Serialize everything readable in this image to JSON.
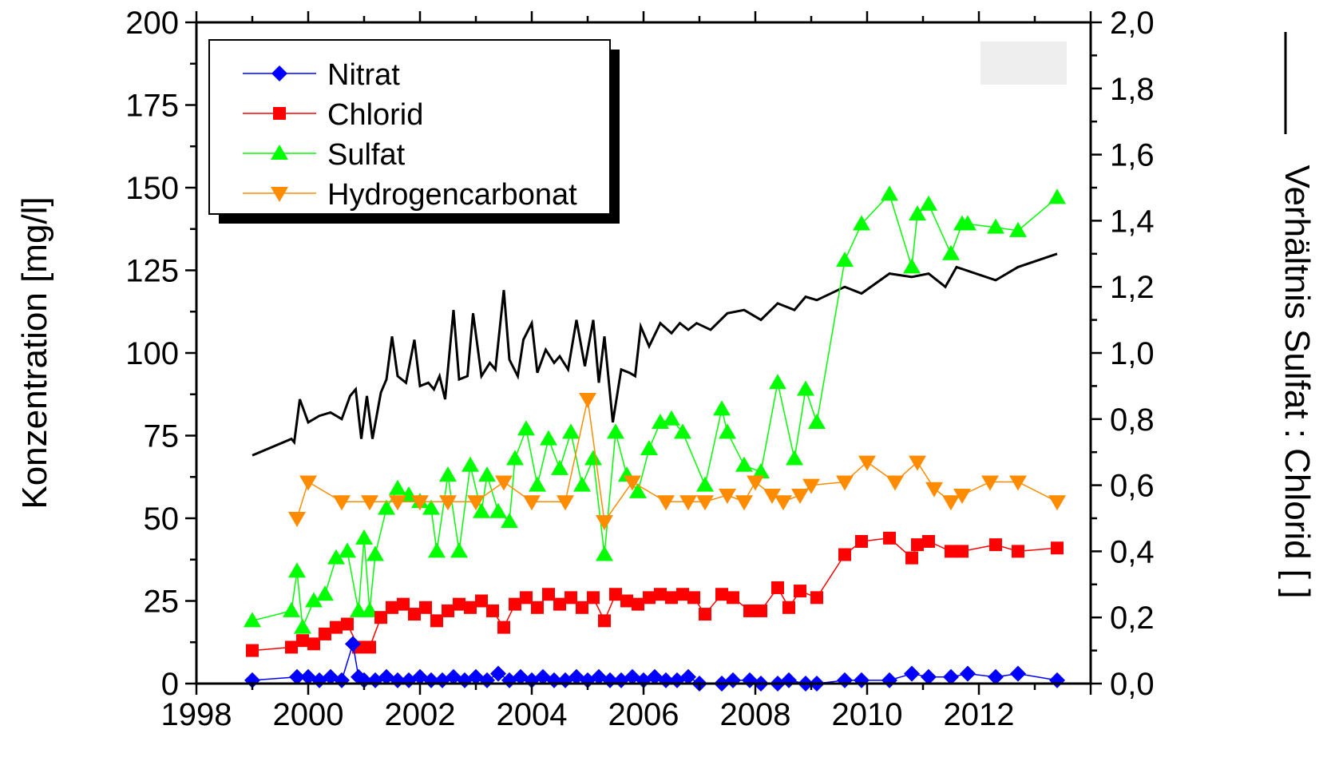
{
  "chart_data": {
    "type": "line",
    "xlabel": "",
    "ylabel": "Konzentration [mg/l]",
    "y2label": "Verhältnis Sulfat : Chlorid [ ]",
    "xlim": [
      1998,
      2014
    ],
    "ylim": [
      0,
      200
    ],
    "y2lim": [
      0,
      2.0
    ],
    "x_ticks": [
      1998,
      2000,
      2002,
      2004,
      2006,
      2008,
      2010,
      2012
    ],
    "y_ticks": [
      0,
      25,
      50,
      75,
      100,
      125,
      150,
      175,
      200
    ],
    "y2_ticks": [
      "0,0",
      "0,2",
      "0,4",
      "0,6",
      "0,8",
      "1,0",
      "1,2",
      "1,4",
      "1,6",
      "1,8",
      "2,0"
    ],
    "legend_position": "top-left",
    "grid": false,
    "series": [
      {
        "name": "Nitrat",
        "marker": "diamond",
        "color": "#0000ff",
        "axis": "left",
        "x": [
          1999.0,
          1999.8,
          2000.0,
          2000.2,
          2000.4,
          2000.6,
          2000.8,
          2000.9,
          2001.0,
          2001.2,
          2001.4,
          2001.6,
          2001.8,
          2002.0,
          2002.2,
          2002.4,
          2002.6,
          2002.8,
          2003.0,
          2003.2,
          2003.4,
          2003.6,
          2003.8,
          2004.0,
          2004.2,
          2004.4,
          2004.6,
          2004.8,
          2005.0,
          2005.2,
          2005.4,
          2005.6,
          2005.8,
          2006.0,
          2006.2,
          2006.4,
          2006.6,
          2006.8,
          2007.0,
          2007.4,
          2007.6,
          2007.9,
          2008.1,
          2008.4,
          2008.6,
          2008.9,
          2009.1,
          2009.6,
          2009.9,
          2010.4,
          2010.8,
          2011.1,
          2011.5,
          2011.8,
          2012.3,
          2012.7,
          2013.4
        ],
        "values": [
          1,
          2,
          2,
          1,
          2,
          1,
          12,
          2,
          1,
          1,
          2,
          1,
          1,
          2,
          1,
          1,
          2,
          1,
          2,
          1,
          3,
          1,
          2,
          1,
          2,
          1,
          1,
          2,
          1,
          2,
          1,
          1,
          2,
          1,
          2,
          1,
          1,
          2,
          0,
          0,
          1,
          1,
          0,
          0,
          1,
          0,
          0,
          1,
          1,
          1,
          3,
          2,
          2,
          3,
          2,
          3,
          1
        ]
      },
      {
        "name": "Chlorid",
        "marker": "square",
        "color": "#ff0000",
        "axis": "left",
        "x": [
          1999.0,
          1999.7,
          1999.9,
          2000.1,
          2000.3,
          2000.5,
          2000.7,
          2000.9,
          2001.1,
          2001.3,
          2001.5,
          2001.7,
          2001.9,
          2002.1,
          2002.3,
          2002.5,
          2002.7,
          2002.9,
          2003.1,
          2003.3,
          2003.5,
          2003.7,
          2003.9,
          2004.1,
          2004.3,
          2004.5,
          2004.7,
          2004.9,
          2005.1,
          2005.3,
          2005.5,
          2005.7,
          2005.9,
          2006.1,
          2006.3,
          2006.5,
          2006.7,
          2006.9,
          2007.1,
          2007.4,
          2007.6,
          2007.9,
          2008.1,
          2008.4,
          2008.6,
          2008.8,
          2009.1,
          2009.6,
          2009.9,
          2010.4,
          2010.8,
          2010.9,
          2011.1,
          2011.5,
          2011.7,
          2012.3,
          2012.7,
          2013.4
        ],
        "values": [
          10,
          11,
          13,
          12,
          15,
          17,
          18,
          11,
          11,
          20,
          23,
          24,
          21,
          23,
          19,
          22,
          24,
          23,
          25,
          22,
          17,
          24,
          26,
          23,
          27,
          24,
          26,
          23,
          26,
          19,
          27,
          25,
          24,
          26,
          27,
          26,
          27,
          26,
          21,
          27,
          26,
          22,
          22,
          29,
          23,
          28,
          26,
          39,
          43,
          44,
          38,
          42,
          43,
          40,
          40,
          42,
          40,
          41
        ]
      },
      {
        "name": "Sulfat",
        "marker": "triangle-up",
        "color": "#00ff00",
        "axis": "left",
        "x": [
          1999.0,
          1999.7,
          1999.8,
          1999.9,
          2000.1,
          2000.3,
          2000.5,
          2000.7,
          2000.9,
          2001.0,
          2001.1,
          2001.2,
          2001.4,
          2001.6,
          2001.8,
          2002.0,
          2002.2,
          2002.3,
          2002.5,
          2002.7,
          2002.9,
          2003.1,
          2003.2,
          2003.4,
          2003.6,
          2003.7,
          2003.9,
          2004.1,
          2004.3,
          2004.5,
          2004.7,
          2004.9,
          2005.1,
          2005.3,
          2005.5,
          2005.7,
          2005.9,
          2006.1,
          2006.3,
          2006.5,
          2006.7,
          2007.1,
          2007.4,
          2007.5,
          2007.8,
          2008.1,
          2008.4,
          2008.7,
          2008.9,
          2009.1,
          2009.6,
          2009.9,
          2010.4,
          2010.8,
          2010.9,
          2011.1,
          2011.5,
          2011.7,
          2011.8,
          2012.3,
          2012.7,
          2013.4
        ],
        "values": [
          19,
          22,
          34,
          17,
          25,
          27,
          38,
          40,
          22,
          44,
          22,
          39,
          53,
          59,
          57,
          55,
          53,
          40,
          63,
          40,
          66,
          52,
          63,
          52,
          49,
          68,
          77,
          60,
          74,
          65,
          76,
          60,
          68,
          39,
          76,
          63,
          58,
          71,
          79,
          80,
          76,
          60,
          83,
          76,
          66,
          64,
          91,
          68,
          89,
          79,
          128,
          139,
          148,
          126,
          142,
          145,
          130,
          139,
          139,
          138,
          137,
          147
        ]
      },
      {
        "name": "Hydrogencarbonat",
        "marker": "triangle-down",
        "color": "#ff8c00",
        "axis": "left",
        "x": [
          1999.8,
          2000.0,
          2000.6,
          2001.1,
          2001.6,
          2002.0,
          2002.5,
          2003.0,
          2003.5,
          2004.0,
          2004.6,
          2005.0,
          2005.3,
          2005.8,
          2006.4,
          2006.8,
          2007.1,
          2007.5,
          2007.8,
          2008.0,
          2008.3,
          2008.5,
          2008.8,
          2009.0,
          2009.6,
          2010.0,
          2010.5,
          2010.9,
          2011.2,
          2011.5,
          2011.7,
          2012.2,
          2012.7,
          2013.4
        ],
        "values": [
          50,
          61,
          55,
          55,
          55,
          55,
          55,
          55,
          61,
          55,
          55,
          86,
          49,
          61,
          55,
          55,
          55,
          57,
          55,
          61,
          57,
          55,
          57,
          60,
          61,
          67,
          61,
          67,
          59,
          55,
          57,
          61,
          61,
          55
        ]
      },
      {
        "name": "Verhältnis Sulfat : Chlorid",
        "marker": "none",
        "color": "#000000",
        "axis": "right",
        "x": [
          1999.0,
          1999.7,
          1999.75,
          1999.85,
          2000.0,
          2000.2,
          2000.4,
          2000.6,
          2000.75,
          2000.85,
          2000.95,
          2001.05,
          2001.15,
          2001.3,
          2001.4,
          2001.5,
          2001.6,
          2001.75,
          2001.9,
          2002.0,
          2002.15,
          2002.25,
          2002.35,
          2002.45,
          2002.6,
          2002.7,
          2002.85,
          2002.95,
          2003.1,
          2003.25,
          2003.35,
          2003.5,
          2003.6,
          2003.75,
          2003.85,
          2004.0,
          2004.1,
          2004.25,
          2004.4,
          2004.5,
          2004.65,
          2004.8,
          2004.95,
          2005.1,
          2005.2,
          2005.3,
          2005.45,
          2005.6,
          2005.75,
          2005.85,
          2005.95,
          2006.1,
          2006.3,
          2006.5,
          2006.65,
          2006.8,
          2006.95,
          2007.2,
          2007.5,
          2007.8,
          2008.1,
          2008.4,
          2008.7,
          2008.9,
          2009.1,
          2009.6,
          2009.9,
          2010.4,
          2010.8,
          2011.1,
          2011.4,
          2011.6,
          2012.3,
          2012.7,
          2013.4
        ],
        "values": [
          0.69,
          0.74,
          0.73,
          0.86,
          0.79,
          0.81,
          0.82,
          0.8,
          0.87,
          0.89,
          0.74,
          0.87,
          0.74,
          0.88,
          0.92,
          1.05,
          0.93,
          0.91,
          1.04,
          0.9,
          0.91,
          0.89,
          0.93,
          0.86,
          1.13,
          0.92,
          0.93,
          1.12,
          0.93,
          0.97,
          0.95,
          1.19,
          0.98,
          0.93,
          1.04,
          1.09,
          0.94,
          1.01,
          0.97,
          0.99,
          0.95,
          1.1,
          0.96,
          1.1,
          0.91,
          1.05,
          0.79,
          0.95,
          0.94,
          0.93,
          1.08,
          1.02,
          1.09,
          1.06,
          1.09,
          1.07,
          1.09,
          1.07,
          1.12,
          1.13,
          1.1,
          1.15,
          1.13,
          1.17,
          1.16,
          1.2,
          1.18,
          1.24,
          1.23,
          1.24,
          1.2,
          1.26,
          1.22,
          1.26,
          1.3
        ]
      }
    ]
  }
}
